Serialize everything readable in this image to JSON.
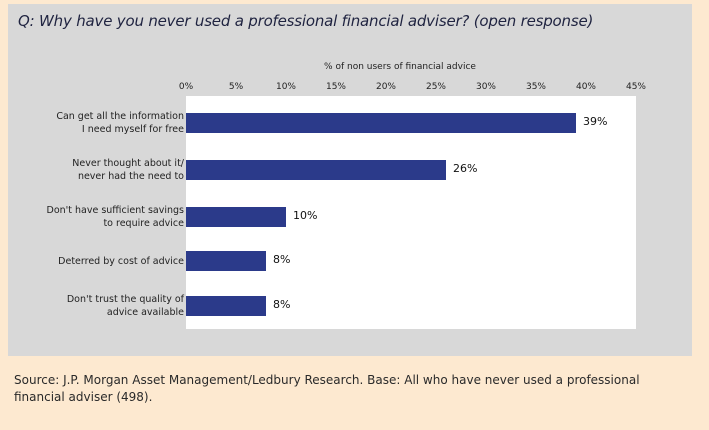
{
  "question": "Q: Why have you never used a professional financial adviser? (open response)",
  "source": "Source: J.P. Morgan Asset Management/Ledbury Research. Base: All who have never used a professional financial adviser (498).",
  "colors": {
    "bar": "#2b3a8a",
    "panel": "#d8d8d8",
    "page": "#fde9d0"
  },
  "chart_data": {
    "type": "bar",
    "orientation": "horizontal",
    "xlabel": "% of non users of financial advice",
    "xlim": [
      0,
      45
    ],
    "ticks": [
      "0%",
      "5%",
      "10%",
      "15%",
      "20%",
      "25%",
      "30%",
      "35%",
      "40%",
      "45%"
    ],
    "tick_values": [
      0,
      5,
      10,
      15,
      20,
      25,
      30,
      35,
      40,
      45
    ],
    "categories": [
      [
        "Can get all the information",
        "I need myself for free"
      ],
      [
        "Never thought about it/",
        "never had the need to"
      ],
      [
        "Don't have sufficient savings",
        "to require advice"
      ],
      [
        "Deterred by cost of advice"
      ],
      [
        "Don't trust the quality of",
        "advice available"
      ]
    ],
    "values": [
      39,
      26,
      10,
      8,
      8
    ],
    "labels": [
      "39%",
      "26%",
      "10%",
      "8%",
      "8%"
    ]
  }
}
